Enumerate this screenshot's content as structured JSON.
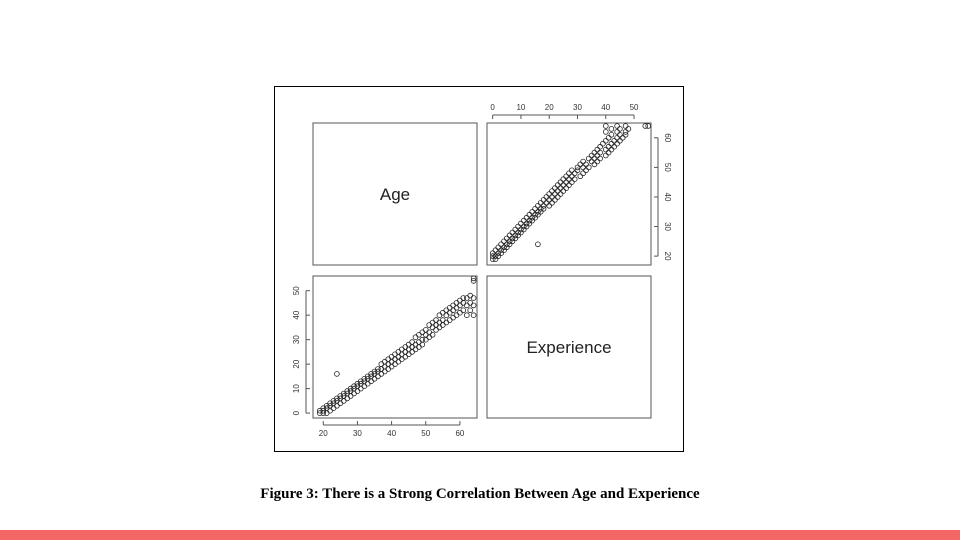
{
  "caption": "Figure 3: There is a Strong Correlation Between Age and Experience",
  "colors": {
    "accent_bar": "#f26666",
    "point_stroke": "#222222",
    "axis": "#555555"
  },
  "chart_data": {
    "type": "scatter",
    "variables": [
      "Age",
      "Experience"
    ],
    "axes": {
      "Age": {
        "ticks": [
          20,
          30,
          40,
          50,
          60
        ],
        "range": [
          17,
          65
        ]
      },
      "Experience": {
        "ticks": [
          0,
          10,
          20,
          30,
          40,
          50
        ],
        "range": [
          -2,
          56
        ]
      }
    },
    "points": [
      [
        19,
        0
      ],
      [
        19,
        1
      ],
      [
        20,
        0
      ],
      [
        20,
        1
      ],
      [
        20,
        2
      ],
      [
        21,
        0
      ],
      [
        21,
        2
      ],
      [
        21,
        3
      ],
      [
        22,
        1
      ],
      [
        22,
        3
      ],
      [
        22,
        4
      ],
      [
        23,
        2
      ],
      [
        23,
        4
      ],
      [
        23,
        5
      ],
      [
        24,
        3
      ],
      [
        24,
        5
      ],
      [
        24,
        6
      ],
      [
        24,
        16
      ],
      [
        25,
        4
      ],
      [
        25,
        6
      ],
      [
        25,
        7
      ],
      [
        26,
        5
      ],
      [
        26,
        7
      ],
      [
        26,
        8
      ],
      [
        27,
        6
      ],
      [
        27,
        8
      ],
      [
        27,
        9
      ],
      [
        28,
        7
      ],
      [
        28,
        9
      ],
      [
        28,
        10
      ],
      [
        29,
        8
      ],
      [
        29,
        10
      ],
      [
        29,
        11
      ],
      [
        30,
        9
      ],
      [
        30,
        11
      ],
      [
        30,
        12
      ],
      [
        31,
        10
      ],
      [
        31,
        12
      ],
      [
        31,
        13
      ],
      [
        32,
        11
      ],
      [
        32,
        13
      ],
      [
        32,
        14
      ],
      [
        33,
        12
      ],
      [
        33,
        14
      ],
      [
        33,
        15
      ],
      [
        34,
        13
      ],
      [
        34,
        15
      ],
      [
        34,
        16
      ],
      [
        35,
        14
      ],
      [
        35,
        16
      ],
      [
        35,
        17
      ],
      [
        36,
        15
      ],
      [
        36,
        17
      ],
      [
        36,
        18
      ],
      [
        37,
        16
      ],
      [
        37,
        18
      ],
      [
        37,
        20
      ],
      [
        38,
        17
      ],
      [
        38,
        19
      ],
      [
        38,
        21
      ],
      [
        39,
        18
      ],
      [
        39,
        20
      ],
      [
        39,
        22
      ],
      [
        40,
        19
      ],
      [
        40,
        21
      ],
      [
        40,
        23
      ],
      [
        41,
        20
      ],
      [
        41,
        22
      ],
      [
        41,
        24
      ],
      [
        42,
        21
      ],
      [
        42,
        23
      ],
      [
        42,
        25
      ],
      [
        43,
        22
      ],
      [
        43,
        24
      ],
      [
        43,
        26
      ],
      [
        44,
        23
      ],
      [
        44,
        25
      ],
      [
        44,
        27
      ],
      [
        45,
        24
      ],
      [
        45,
        26
      ],
      [
        45,
        28
      ],
      [
        46,
        25
      ],
      [
        46,
        27
      ],
      [
        46,
        29
      ],
      [
        47,
        26
      ],
      [
        47,
        28
      ],
      [
        47,
        31
      ],
      [
        48,
        27
      ],
      [
        48,
        29
      ],
      [
        48,
        32
      ],
      [
        49,
        28
      ],
      [
        49,
        30
      ],
      [
        49,
        33
      ],
      [
        50,
        30
      ],
      [
        50,
        32
      ],
      [
        50,
        34
      ],
      [
        51,
        31
      ],
      [
        51,
        33
      ],
      [
        51,
        36
      ],
      [
        52,
        32
      ],
      [
        52,
        35
      ],
      [
        52,
        37
      ],
      [
        53,
        34
      ],
      [
        53,
        36
      ],
      [
        53,
        38
      ],
      [
        54,
        35
      ],
      [
        54,
        37
      ],
      [
        54,
        40
      ],
      [
        55,
        36
      ],
      [
        55,
        38
      ],
      [
        55,
        41
      ],
      [
        56,
        37
      ],
      [
        56,
        40
      ],
      [
        56,
        42
      ],
      [
        57,
        38
      ],
      [
        57,
        41
      ],
      [
        57,
        43
      ],
      [
        58,
        39
      ],
      [
        58,
        42
      ],
      [
        58,
        44
      ],
      [
        59,
        40
      ],
      [
        59,
        43
      ],
      [
        59,
        45
      ],
      [
        60,
        41
      ],
      [
        60,
        44
      ],
      [
        60,
        46
      ],
      [
        61,
        42
      ],
      [
        61,
        45
      ],
      [
        61,
        47
      ],
      [
        62,
        40
      ],
      [
        62,
        44
      ],
      [
        62,
        47
      ],
      [
        63,
        42
      ],
      [
        63,
        45
      ],
      [
        64,
        40
      ],
      [
        64,
        44
      ],
      [
        64,
        47
      ],
      [
        64,
        54
      ],
      [
        64,
        55
      ],
      [
        63,
        48
      ]
    ]
  }
}
